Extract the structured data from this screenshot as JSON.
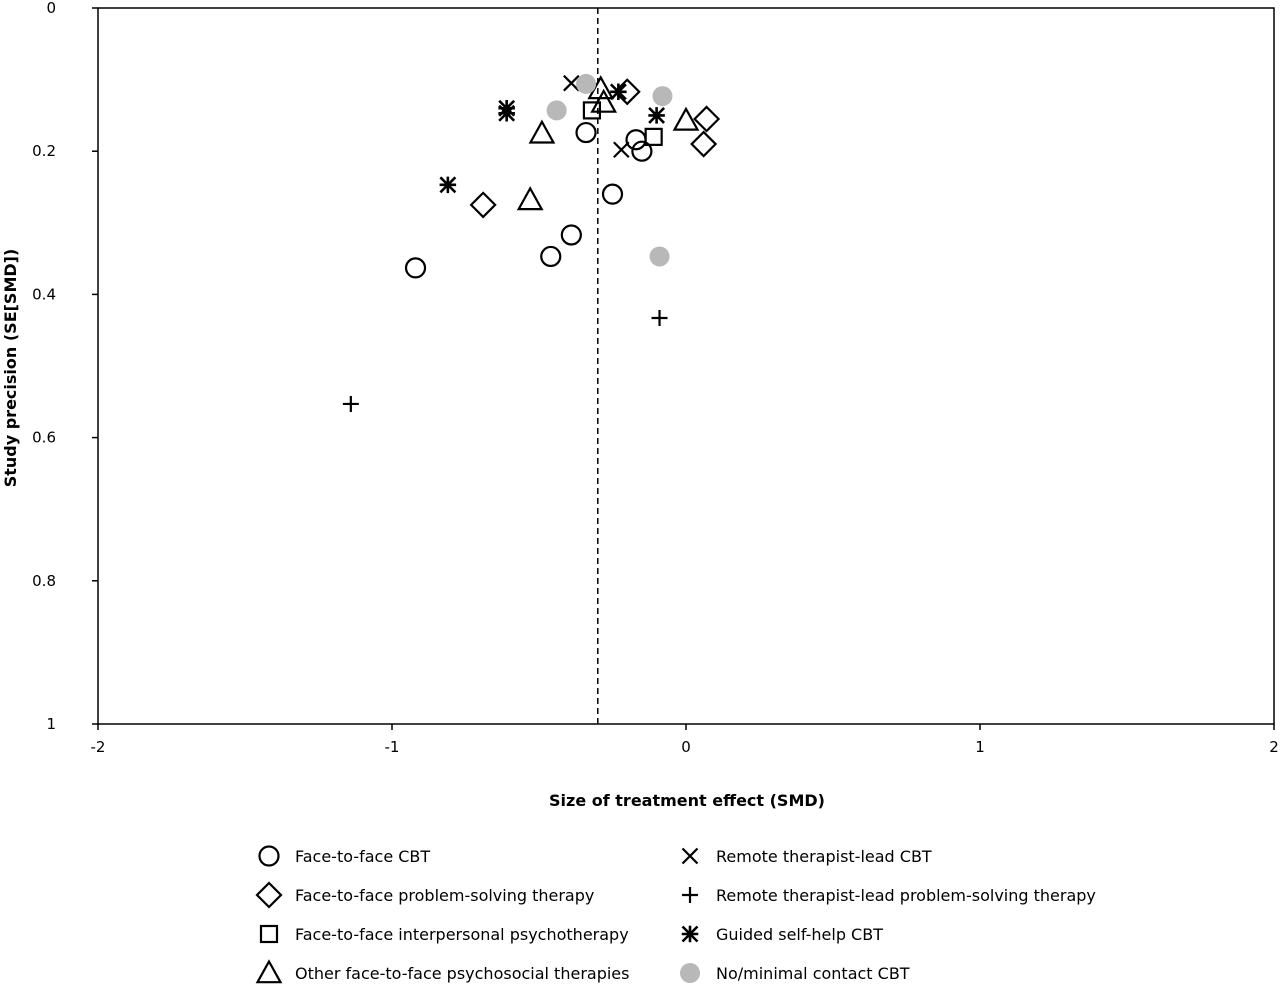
{
  "chart_data": {
    "type": "scatter",
    "title": "",
    "xlabel": "Size of treatment effect (SMD)",
    "ylabel": "Study precision (SE[SMD])",
    "xlim": [
      -2,
      2
    ],
    "ylim": [
      0,
      1
    ],
    "y_inverted": true,
    "xticks": [
      -2,
      -1,
      0,
      1,
      2
    ],
    "xtick_labels": [
      "-2",
      "-1",
      "0",
      "1",
      "2"
    ],
    "yticks": [
      0,
      0.2,
      0.4,
      0.6,
      0.8,
      1
    ],
    "ytick_labels": [
      "0",
      "0.2",
      "0.4",
      "0.6",
      "0.8",
      "1"
    ],
    "grid": false,
    "reference_line": {
      "x": -0.3,
      "style": "dashed"
    },
    "legend_position": "bottom",
    "series": [
      {
        "name": "Face-to-face CBT",
        "marker": "circle-open",
        "color": "#000000",
        "points": [
          {
            "x": -0.92,
            "y": 0.363
          },
          {
            "x": -0.46,
            "y": 0.347
          },
          {
            "x": -0.39,
            "y": 0.317
          },
          {
            "x": -0.34,
            "y": 0.174
          },
          {
            "x": -0.25,
            "y": 0.26
          },
          {
            "x": -0.17,
            "y": 0.184
          },
          {
            "x": -0.15,
            "y": 0.2
          }
        ]
      },
      {
        "name": "Face-to-face problem-solving therapy",
        "marker": "diamond-open",
        "color": "#000000",
        "points": [
          {
            "x": -0.69,
            "y": 0.275
          },
          {
            "x": -0.2,
            "y": 0.117
          },
          {
            "x": 0.06,
            "y": 0.19
          },
          {
            "x": 0.07,
            "y": 0.155
          }
        ]
      },
      {
        "name": "Face-to-face interpersonal psychotherapy",
        "marker": "square-open",
        "color": "#000000",
        "points": [
          {
            "x": -0.32,
            "y": 0.143
          },
          {
            "x": -0.11,
            "y": 0.18
          }
        ]
      },
      {
        "name": "Other face-to-face psychosocial therapies",
        "marker": "triangle-open",
        "color": "#000000",
        "points": [
          {
            "x": -0.53,
            "y": 0.268
          },
          {
            "x": -0.49,
            "y": 0.175
          },
          {
            "x": -0.29,
            "y": 0.113
          },
          {
            "x": -0.28,
            "y": 0.132
          },
          {
            "x": 0.0,
            "y": 0.157
          }
        ]
      },
      {
        "name": "Remote therapist-lead CBT",
        "marker": "x",
        "color": "#000000",
        "points": [
          {
            "x": -0.39,
            "y": 0.105
          },
          {
            "x": -0.22,
            "y": 0.198
          }
        ]
      },
      {
        "name": "Remote therapist-lead problem-solving therapy",
        "marker": "plus",
        "color": "#000000",
        "points": [
          {
            "x": -1.14,
            "y": 0.553
          },
          {
            "x": -0.09,
            "y": 0.433
          }
        ]
      },
      {
        "name": "Guided self-help CBT",
        "marker": "asterisk",
        "color": "#000000",
        "points": [
          {
            "x": -0.81,
            "y": 0.247
          },
          {
            "x": -0.61,
            "y": 0.14
          },
          {
            "x": -0.61,
            "y": 0.147
          },
          {
            "x": -0.23,
            "y": 0.117
          },
          {
            "x": -0.1,
            "y": 0.15
          }
        ]
      },
      {
        "name": "No/minimal contact CBT",
        "marker": "circle-filled",
        "color": "#b8b8b8",
        "points": [
          {
            "x": -0.44,
            "y": 0.143
          },
          {
            "x": -0.34,
            "y": 0.106
          },
          {
            "x": -0.08,
            "y": 0.123
          },
          {
            "x": -0.09,
            "y": 0.347
          }
        ]
      }
    ]
  }
}
